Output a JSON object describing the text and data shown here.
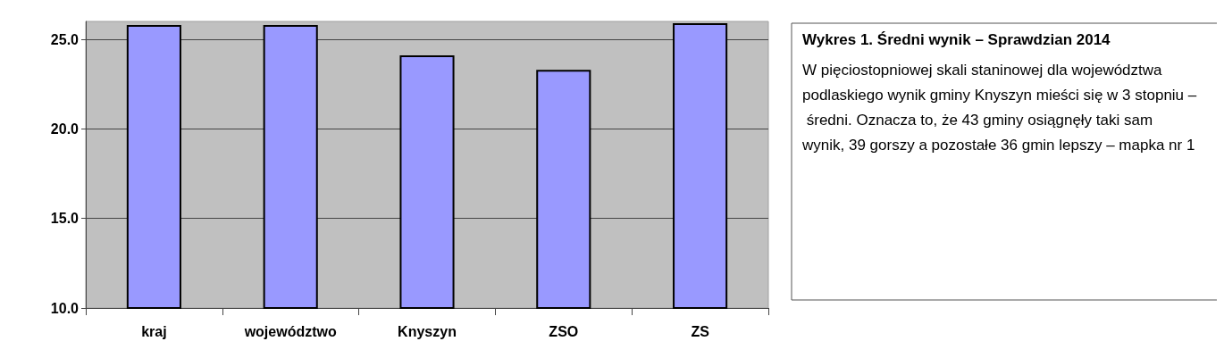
{
  "chart_data": {
    "type": "bar",
    "title": "Wykres 1. Średni wynik – Sprawdzian 2014",
    "annotations": [
      "W pięciostopniowej skali staninowej dla województwa podlaskiego wynik gminy Knyszyn mieści się w 3 stopniu – średni. Oznacza to, że 43 gminy osiągnęły taki sam wynik, 39 gorszy a pozostałe 36 gmin lepszy – mapka nr 1"
    ],
    "categories": [
      "kraj",
      "województwo",
      "Knyszyn",
      "ZSO",
      "ZS"
    ],
    "values": [
      25.8,
      25.8,
      24.1,
      23.3,
      25.9
    ],
    "color": "#9999ff",
    "ylim": [
      10,
      26
    ],
    "yticks": [
      {
        "value": 10,
        "label": "10.0"
      },
      {
        "value": 15,
        "label": "15.0"
      },
      {
        "value": 20,
        "label": "20.0"
      },
      {
        "value": 25,
        "label": "25.0"
      }
    ],
    "grid": true
  }
}
